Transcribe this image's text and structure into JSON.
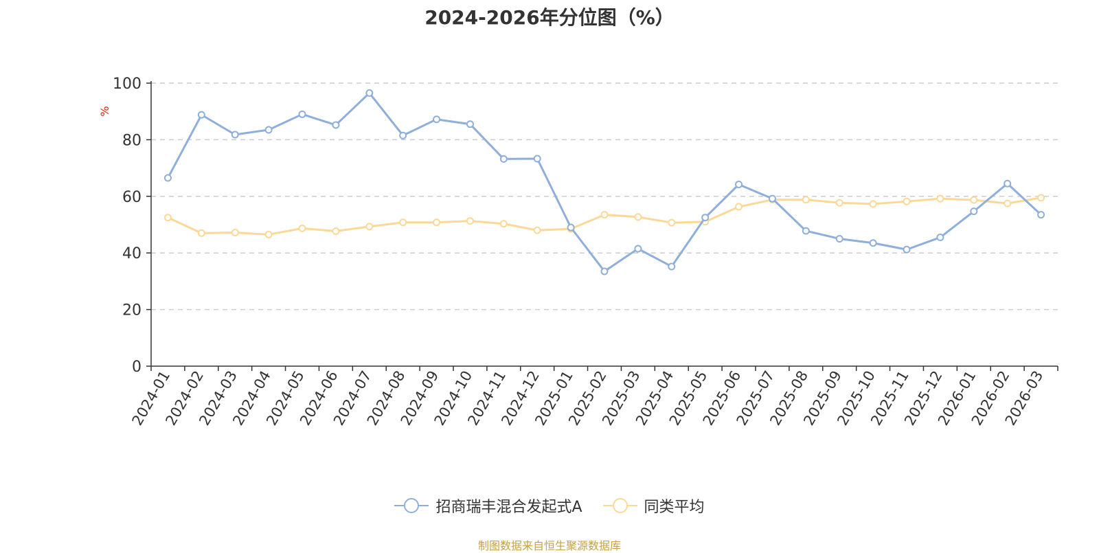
{
  "chart_data": {
    "type": "line",
    "title": "2024-2026年分位图（%）",
    "ylabel": "%",
    "xlabel": "",
    "ylim": [
      0,
      100
    ],
    "yticks": [
      0,
      20,
      40,
      60,
      80,
      100
    ],
    "grid": true,
    "legend_position": "bottom-center",
    "categories": [
      "2024-01",
      "2024-02",
      "2024-03",
      "2024-04",
      "2024-05",
      "2024-06",
      "2024-07",
      "2024-08",
      "2024-09",
      "2024-10",
      "2024-11",
      "2024-12",
      "2025-01",
      "2025-02",
      "2025-03",
      "2025-04",
      "2025-05",
      "2025-06",
      "2025-07",
      "2025-08",
      "2025-09",
      "2025-10",
      "2025-11",
      "2025-12",
      "2026-01",
      "2026-02",
      "2026-03"
    ],
    "series": [
      {
        "name": "招商瑞丰混合发起式A",
        "color": "#8eaedb",
        "values": [
          66.5,
          88.8,
          81.8,
          83.5,
          89.0,
          85.2,
          96.5,
          81.5,
          87.2,
          85.5,
          73.2,
          73.3,
          49.0,
          33.5,
          41.5,
          35.2,
          52.5,
          64.2,
          59.2,
          47.8,
          45.0,
          43.5,
          41.2,
          45.5,
          54.7,
          64.5,
          53.5
        ]
      },
      {
        "name": "同类平均",
        "color": "#fbd897",
        "values": [
          52.5,
          47.0,
          47.2,
          46.5,
          48.7,
          47.7,
          49.3,
          50.8,
          50.8,
          51.3,
          50.3,
          48.0,
          48.5,
          53.5,
          52.7,
          50.7,
          51.0,
          56.3,
          58.8,
          58.8,
          57.7,
          57.3,
          58.2,
          59.2,
          58.7,
          57.5,
          59.5
        ]
      }
    ]
  },
  "source_text": "制图数据来自恒生聚源数据库",
  "colors": {
    "axis": "#333333",
    "grid": "#cccccc",
    "ylabel": "#e8200c",
    "source": "#c8a046"
  }
}
